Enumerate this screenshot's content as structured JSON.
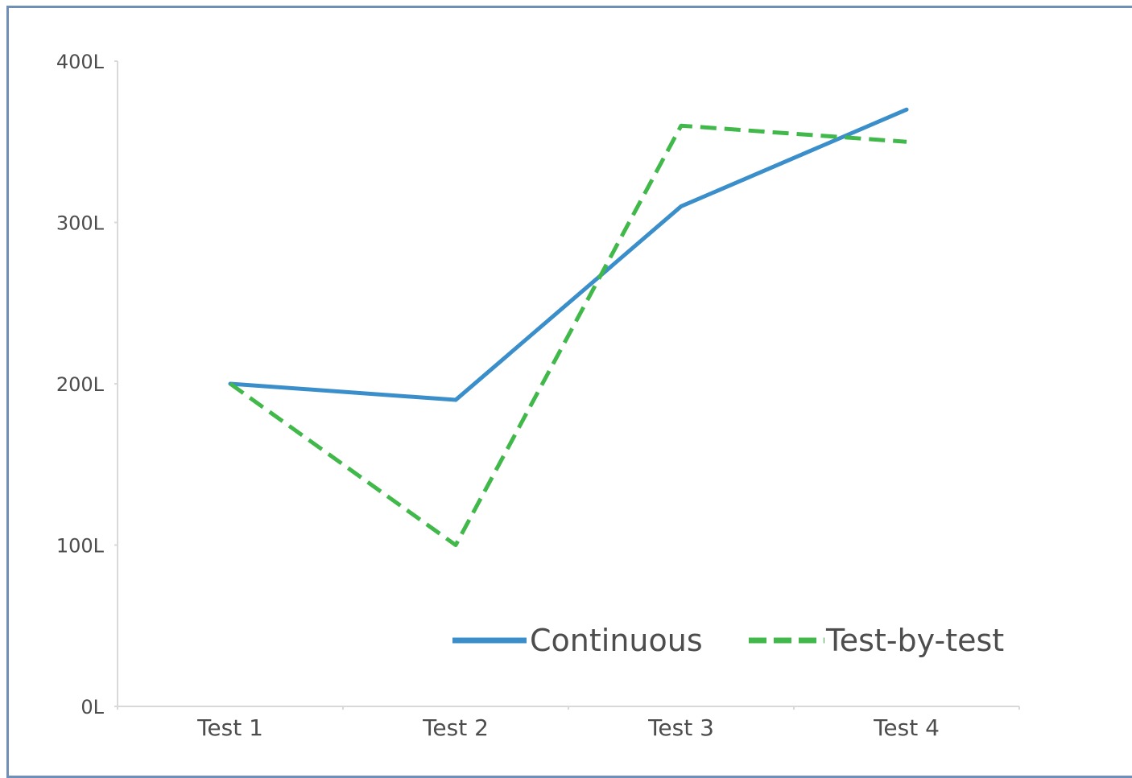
{
  "chart_data": {
    "type": "line",
    "title": "",
    "xlabel": "",
    "ylabel": "",
    "categories": [
      "Test 1",
      "Test 2",
      "Test 3",
      "Test 4"
    ],
    "y_ticks": [
      "0L",
      "100L",
      "200L",
      "300L",
      "400L"
    ],
    "ylim": [
      0,
      400
    ],
    "grid": false,
    "legend_position": "bottom-right inside plot",
    "series": [
      {
        "name": "Continuous",
        "values": [
          200,
          190,
          310,
          370
        ],
        "color": "#3a8fcb",
        "style": "solid"
      },
      {
        "name": "Test-by-test",
        "values": [
          200,
          100,
          360,
          350
        ],
        "color": "#41b84a",
        "style": "dashed"
      }
    ]
  }
}
